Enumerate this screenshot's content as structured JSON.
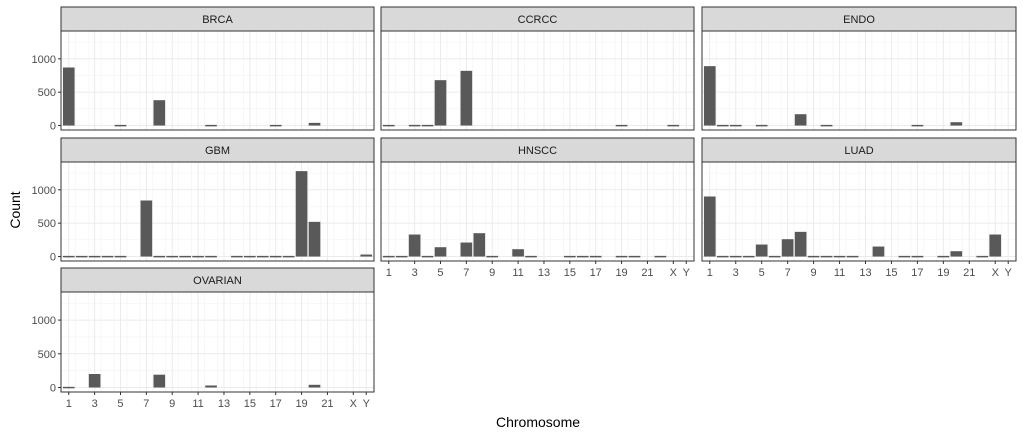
{
  "chart_data": {
    "type": "bar",
    "facet_layout": "3 x 3 grid (facet_wrap)",
    "xlabel": "Chromosome",
    "ylabel": "Count",
    "ylim": [
      0,
      1350
    ],
    "yticks": [
      0,
      500,
      1000
    ],
    "categories": [
      "1",
      "2",
      "3",
      "4",
      "5",
      "6",
      "7",
      "8",
      "9",
      "10",
      "11",
      "12",
      "13",
      "14",
      "15",
      "16",
      "17",
      "18",
      "19",
      "20",
      "21",
      "22",
      "X",
      "Y"
    ],
    "xtick_labels": [
      "1",
      "3",
      "5",
      "7",
      "9",
      "11",
      "13",
      "15",
      "17",
      "19",
      "21",
      "X",
      "Y"
    ],
    "grid": true,
    "bar_color": "#595959",
    "panels": [
      {
        "name": "BRCA",
        "values": [
          870,
          0,
          0,
          0,
          10,
          0,
          0,
          380,
          0,
          0,
          0,
          10,
          0,
          0,
          0,
          0,
          10,
          0,
          0,
          40,
          0,
          0,
          0,
          0
        ]
      },
      {
        "name": "CCRCC",
        "values": [
          10,
          0,
          10,
          10,
          680,
          0,
          820,
          0,
          0,
          0,
          0,
          0,
          0,
          0,
          0,
          0,
          0,
          0,
          10,
          0,
          0,
          0,
          10,
          0
        ]
      },
      {
        "name": "ENDO",
        "values": [
          890,
          10,
          10,
          0,
          10,
          0,
          0,
          170,
          0,
          10,
          0,
          0,
          0,
          0,
          0,
          0,
          10,
          0,
          0,
          50,
          0,
          0,
          0,
          0
        ]
      },
      {
        "name": "GBM",
        "values": [
          10,
          10,
          10,
          10,
          10,
          0,
          840,
          10,
          10,
          10,
          10,
          10,
          0,
          10,
          10,
          10,
          10,
          10,
          1280,
          520,
          0,
          0,
          0,
          30
        ]
      },
      {
        "name": "HNSCC",
        "values": [
          10,
          10,
          330,
          10,
          140,
          0,
          210,
          350,
          10,
          0,
          110,
          10,
          0,
          0,
          10,
          10,
          10,
          0,
          10,
          10,
          0,
          10,
          0,
          0
        ]
      },
      {
        "name": "LUAD",
        "values": [
          900,
          10,
          10,
          10,
          180,
          10,
          260,
          370,
          10,
          10,
          10,
          10,
          0,
          150,
          0,
          10,
          10,
          0,
          10,
          80,
          0,
          10,
          330,
          0
        ]
      },
      {
        "name": "OVARIAN",
        "values": [
          10,
          0,
          200,
          0,
          0,
          0,
          0,
          190,
          0,
          0,
          0,
          30,
          0,
          0,
          0,
          0,
          0,
          0,
          0,
          40,
          0,
          0,
          0,
          0
        ]
      }
    ]
  }
}
